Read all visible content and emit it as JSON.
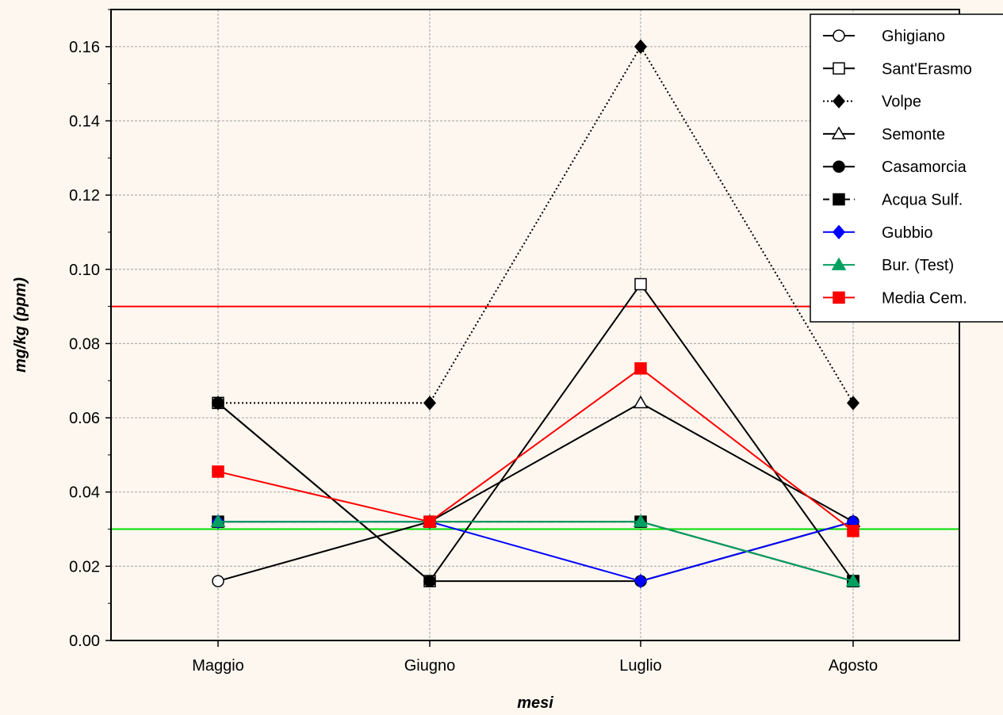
{
  "chart_data": {
    "type": "line",
    "title": "",
    "xlabel": "mesi",
    "ylabel": "mg/kg (ppm)",
    "categories": [
      "Maggio",
      "Giugno",
      "Luglio",
      "Agosto"
    ],
    "ylim": [
      0,
      0.17
    ],
    "yticks": [
      0.0,
      0.02,
      0.04,
      0.06,
      0.08,
      0.1,
      0.12,
      0.14,
      0.16
    ],
    "ytick_labels": [
      "0.00",
      "0.02",
      "0.04",
      "0.06",
      "0.08",
      "0.10",
      "0.12",
      "0.14",
      "0.16"
    ],
    "grid": true,
    "legend_position": "top-right",
    "series": [
      {
        "name": "Ghigiano",
        "values": [
          0.016,
          0.032,
          0.032,
          0.016
        ],
        "color": "#000000",
        "dash": "solid",
        "marker": "circle",
        "filled": false
      },
      {
        "name": "Sant'Erasmo",
        "values": [
          0.064,
          0.016,
          0.096,
          0.016
        ],
        "color": "#000000",
        "dash": "solid",
        "marker": "square",
        "filled": false
      },
      {
        "name": "Volpe",
        "values": [
          0.064,
          0.064,
          0.16,
          0.064
        ],
        "color": "#000000",
        "dash": "dotted",
        "marker": "diamond",
        "filled": true
      },
      {
        "name": "Semonte",
        "values": [
          0.032,
          0.032,
          0.064,
          0.032
        ],
        "color": "#000000",
        "dash": "solid",
        "marker": "triangle",
        "filled": false
      },
      {
        "name": "Casamorcia",
        "values": [
          0.064,
          0.016,
          0.016,
          0.032
        ],
        "color": "#000000",
        "dash": "solid",
        "marker": "circle",
        "filled": true
      },
      {
        "name": "Acqua Sulf.",
        "values": [
          0.032,
          0.032,
          0.032,
          0.016
        ],
        "color": "#000000",
        "dash": "dashed",
        "marker": "square",
        "filled": true
      },
      {
        "name": "Gubbio",
        "values": [
          0.032,
          0.032,
          0.016,
          0.032
        ],
        "color": "#0000ff",
        "dash": "solid",
        "marker": "diamond",
        "filled": true
      },
      {
        "name": "Bur. (Test)",
        "values": [
          0.032,
          0.032,
          0.032,
          0.016
        ],
        "color": "#00a060",
        "dash": "solid",
        "marker": "triangle",
        "filled": true
      },
      {
        "name": "Media Cem.",
        "values": [
          0.0455,
          0.032,
          0.0733,
          0.0295
        ],
        "color": "#ff0000",
        "dash": "solid",
        "marker": "square",
        "filled": true
      }
    ],
    "reference_lines": [
      {
        "y": 0.09,
        "color": "#ff0000"
      },
      {
        "y": 0.03,
        "color": "#00dd00"
      }
    ]
  }
}
